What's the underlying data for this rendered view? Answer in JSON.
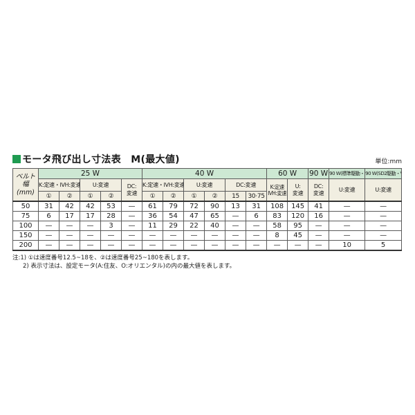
{
  "title": "モータ飛び出し寸法表　M(最大値)",
  "unit_label": "単位:mm",
  "accent_color": "#1f9b51",
  "header_green": "#cde8d3",
  "header_beige": "#f1eee1",
  "table": {
    "corner": {
      "l1": "ベルト幅",
      "l2": "(mm)"
    },
    "groups": [
      "25 W",
      "40 W",
      "60 W",
      "90 W",
      "90 W(標準駆動・VT)",
      "90 W(SD2駆動・VT)"
    ],
    "h2": {
      "k25": "K:定速・IVH:変速",
      "u25": "U:変速",
      "dc25": {
        "l1": "DC:",
        "l2": "変速"
      },
      "k40": "K:定速・IVH:変速",
      "u40": "U:変速",
      "dc40": "DC:変速",
      "k60": {
        "l1": "K:定速",
        "l2": "IVH:変速"
      },
      "u60": {
        "l1": "U:",
        "l2": "変速"
      },
      "dc90": {
        "l1": "DC:",
        "l2": "変速"
      },
      "u90std": "U:変速",
      "u90sd2": "U:変速"
    },
    "h3": [
      "①",
      "②",
      "①",
      "②",
      "①",
      "②",
      "①",
      "②",
      "15",
      "30·75"
    ],
    "rows": [
      {
        "belt": "50",
        "values": [
          "31",
          "42",
          "42",
          "53",
          "—",
          "61",
          "79",
          "72",
          "90",
          "13",
          "31",
          "108",
          "145",
          "41",
          "—",
          "—"
        ]
      },
      {
        "belt": "75",
        "values": [
          "6",
          "17",
          "17",
          "28",
          "—",
          "36",
          "54",
          "47",
          "65",
          "—",
          "6",
          "83",
          "120",
          "16",
          "—",
          "—"
        ]
      },
      {
        "belt": "100",
        "values": [
          "—",
          "—",
          "—",
          "3",
          "—",
          "11",
          "29",
          "22",
          "40",
          "—",
          "—",
          "58",
          "95",
          "—",
          "—",
          "—"
        ]
      },
      {
        "belt": "150",
        "values": [
          "—",
          "—",
          "—",
          "—",
          "—",
          "—",
          "—",
          "—",
          "—",
          "—",
          "—",
          "8",
          "45",
          "—",
          "—",
          "—"
        ]
      },
      {
        "belt": "200",
        "values": [
          "—",
          "—",
          "—",
          "—",
          "—",
          "—",
          "—",
          "—",
          "—",
          "—",
          "—",
          "—",
          "—",
          "—",
          "10",
          "5"
        ]
      }
    ]
  },
  "notes": [
    "注:1) ①は速度番号12.5~18を、②は速度番号25~180を表します。",
    "2) 表示寸法は、設定モータ(A:住友、O:オリエンタル)の内の最大値を表します。"
  ]
}
